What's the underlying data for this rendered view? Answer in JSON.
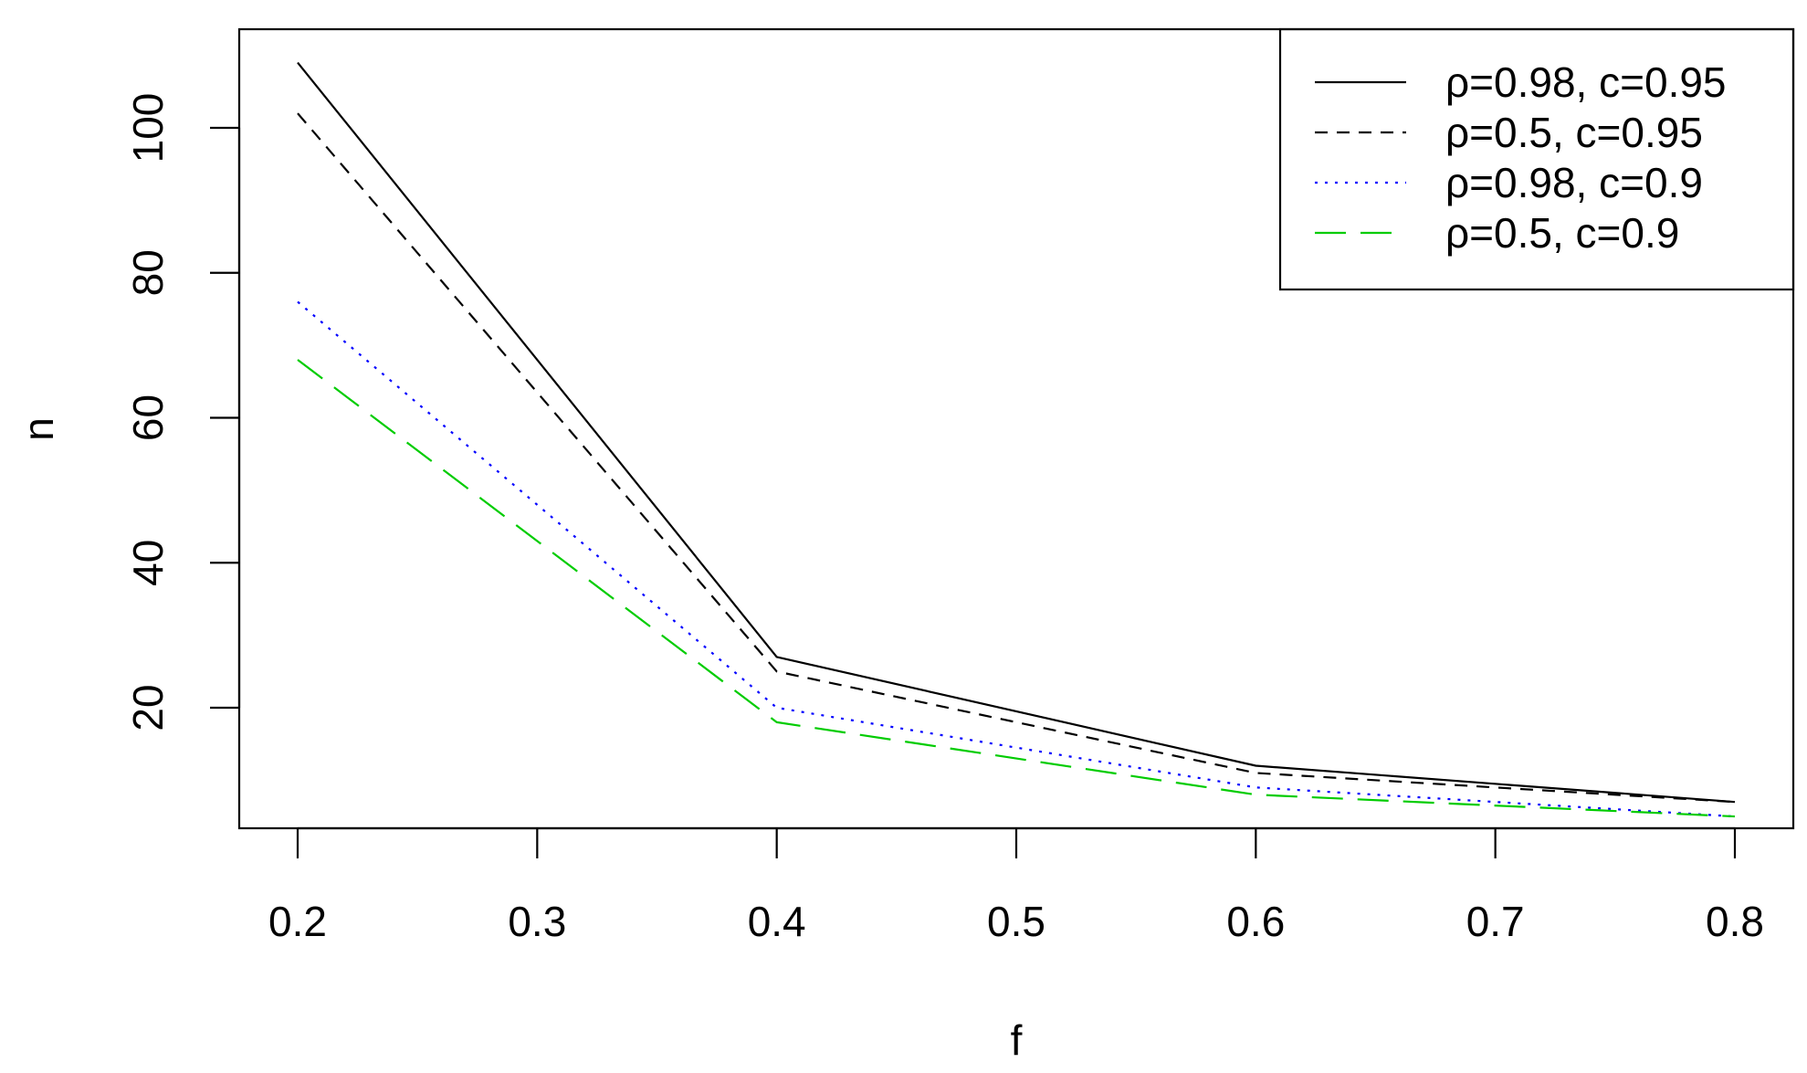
{
  "chart_data": {
    "type": "line",
    "title": "",
    "xlabel": "f",
    "ylabel": "n",
    "x": [
      0.2,
      0.4,
      0.6,
      0.8
    ],
    "xlim": [
      0.2,
      0.8
    ],
    "ylim": [
      5,
      110
    ],
    "x_ticks": [
      "0.2",
      "0.3",
      "0.4",
      "0.5",
      "0.6",
      "0.7",
      "0.8"
    ],
    "y_ticks": [
      "20",
      "40",
      "60",
      "80",
      "100"
    ],
    "grid": false,
    "legend_position": "top-right",
    "series": [
      {
        "name": "ρ=0.98,  c=0.95",
        "values": [
          109,
          27,
          12,
          7
        ],
        "color": "#000000",
        "dash": "solid"
      },
      {
        "name": "ρ=0.5,  c=0.95",
        "values": [
          102,
          25,
          11,
          7
        ],
        "color": "#000000",
        "dash": "dashed"
      },
      {
        "name": "ρ=0.98,  c=0.9",
        "values": [
          76,
          20,
          9,
          5
        ],
        "color": "#0000ff",
        "dash": "dotted"
      },
      {
        "name": "ρ=0.5,  c=0.9",
        "values": [
          68,
          18,
          8,
          5
        ],
        "color": "#00cc00",
        "dash": "longdash"
      }
    ]
  }
}
